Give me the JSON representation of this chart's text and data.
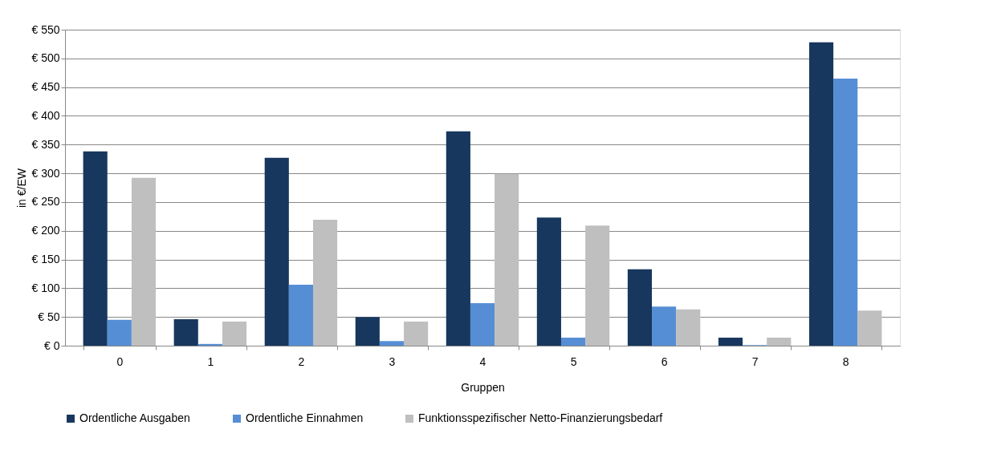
{
  "chart_data": {
    "type": "bar",
    "xlabel": "Gruppen",
    "ylabel": "in €/EW",
    "categories": [
      "0",
      "1",
      "2",
      "3",
      "4",
      "5",
      "6",
      "7",
      "8"
    ],
    "series": [
      {
        "name": "Ordentliche Ausgaben",
        "color": "#17375e",
        "values": [
          338,
          46,
          327,
          50,
          373,
          223,
          133,
          14,
          528
        ]
      },
      {
        "name": "Ordentliche Einnahmen",
        "color": "#558ed5",
        "values": [
          45,
          3,
          106,
          8,
          74,
          14,
          68,
          1,
          465
        ]
      },
      {
        "name": "Funktionsspezifischer Netto-Finanzierungsbedarf",
        "color": "#bfbfbf",
        "values": [
          292,
          42,
          219,
          42,
          299,
          209,
          63,
          14,
          61
        ]
      }
    ],
    "ylim": [
      0,
      550
    ],
    "yticks": [
      {
        "value": 0,
        "label": "€ 0"
      },
      {
        "value": 50,
        "label": "€ 50"
      },
      {
        "value": 100,
        "label": "€ 100"
      },
      {
        "value": 150,
        "label": "€ 150"
      },
      {
        "value": 200,
        "label": "€ 200"
      },
      {
        "value": 250,
        "label": "€ 250"
      },
      {
        "value": 300,
        "label": "€ 300"
      },
      {
        "value": 350,
        "label": "€ 350"
      },
      {
        "value": 400,
        "label": "€ 400"
      },
      {
        "value": 450,
        "label": "€ 450"
      },
      {
        "value": 500,
        "label": "€ 500"
      },
      {
        "value": 550,
        "label": "€ 550"
      }
    ],
    "grid": "y",
    "legend": "bottom"
  }
}
